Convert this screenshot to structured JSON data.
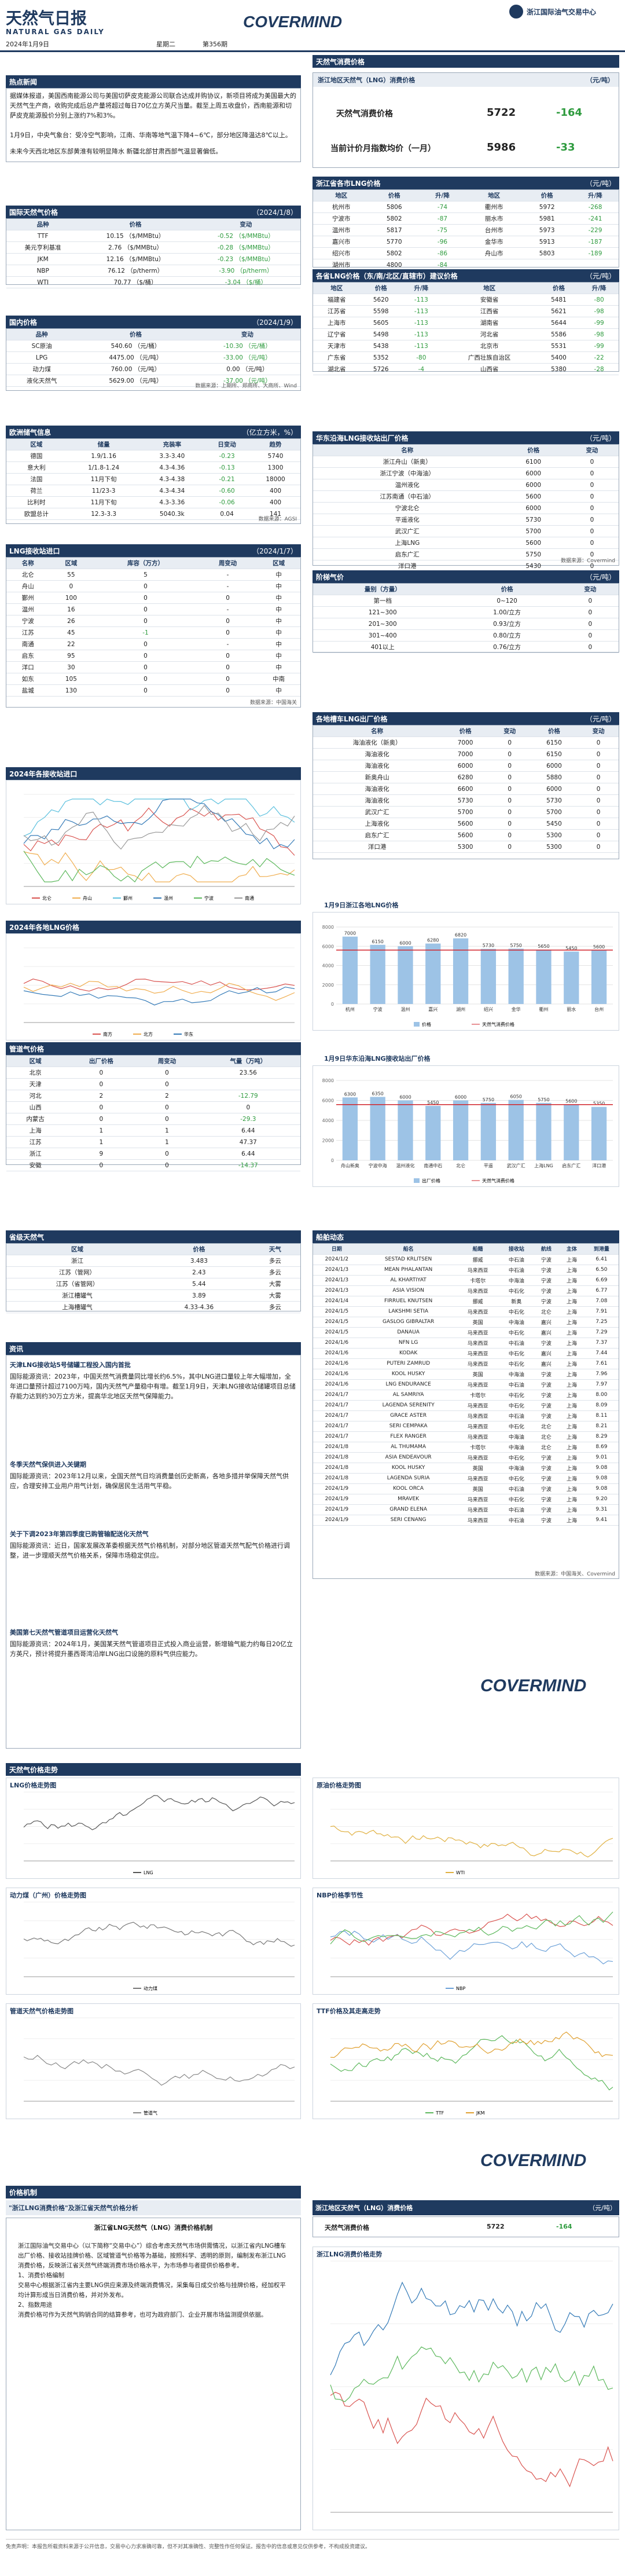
{
  "header": {
    "title": "天然气日报",
    "subtitle": "NATURAL GAS DAILY",
    "date": "2024年1月9日",
    "weekday": "星期二",
    "issue": "第356期",
    "brand": "COVERMIND",
    "org": "浙江国际油气交易中心"
  },
  "hot": {
    "title": "热点新闻",
    "p1": "据媒体报道，美国西南能源公司与美国切萨皮克能源公司联合达成并购协议，新项目将成为美国最大的天然气生产商，收购完成后总产量将超过每日70亿立方英尺当量。截至上周五收盘价，西南能源和切萨皮克能源股价分别上涨约7%和3%。",
    "p2": "1月9日，中央气象台：受冷空气影响，江南、华南等地气温下降4~6℃，部分地区降温达8℃以上。",
    "p3": "未来今天西北地区东部黄淮有较明显降水 新疆北部甘肃西部气温显著偏低。"
  },
  "intl": {
    "title": "国际天然气价格",
    "date": "（2024/1/8）",
    "cols": [
      "品种",
      "价格",
      "变动"
    ],
    "rows": [
      [
        "TTF",
        "10.15 （$/MMBtu）",
        "-0.52 （$/MMBtu）"
      ],
      [
        "美元亨利基准",
        "2.76 （$/MMBtu）",
        "-0.28 （$/MMBtu）"
      ],
      [
        "JKM",
        "12.16 （$/MMBtu）",
        "-0.23 （$/MMBtu）"
      ],
      [
        "NBP",
        "76.12 （p/therm）",
        "-3.90 （p/therm）"
      ],
      [
        "WTI",
        "70.77 （$/桶）",
        "-3.04 （$/桶）"
      ]
    ]
  },
  "dom": {
    "title": "国内价格",
    "date": "（2024/1/9）",
    "cols": [
      "品种",
      "价格",
      "变动"
    ],
    "rows": [
      [
        "SC原油",
        "540.60 （元/桶）",
        "-10.30 （元/桶）"
      ],
      [
        "LPG",
        "4475.00 （元/吨）",
        "-33.00 （元/吨）"
      ],
      [
        "动力煤",
        "760.00 （元/吨）",
        "0.00 （元/吨）"
      ],
      [
        "液化天然气",
        "5629.00 （元/吨）",
        "-37.00 （元/吨）"
      ]
    ],
    "note": "数据来源：上期所、郑商所、大商所、Wind"
  },
  "storage": {
    "title": "欧洲储气信息",
    "unit": "（亿立方米，%）",
    "cols": [
      "区域",
      "储量",
      "充装率",
      "日变动",
      "趋势"
    ],
    "rows": [
      [
        "德国",
        "1.9/1.16",
        "3.3-3.40",
        "-0.23",
        "5740"
      ],
      [
        "意大利",
        "1/1.8-1.24",
        "4.3-4.36",
        "-0.13",
        "1300"
      ],
      [
        "法国",
        "11月下旬",
        "4.3-4.38",
        "-0.21",
        "18000"
      ],
      [
        "荷兰",
        "11/23-3",
        "4.3-4.34",
        "-0.60",
        "400"
      ],
      [
        "比利时",
        "11月下旬",
        "4.3-3.36",
        "-0.06",
        "400"
      ],
      [
        "欧盟总计",
        "12.3-3.3",
        "5040.3k",
        "0.04",
        "141"
      ]
    ],
    "note": "数据来源：AGSI"
  },
  "lng": {
    "title": "LNG接收站进口",
    "date": "（2024/1/7）",
    "cols": [
      "名称",
      "区域",
      "库容（万方）",
      "周变动",
      "区域"
    ],
    "rows": [
      [
        "北仑",
        "55",
        "5",
        "-",
        "中"
      ],
      [
        "舟山",
        "0",
        "0",
        "-",
        "中"
      ],
      [
        "鄞州",
        "100",
        "0",
        "0",
        "中"
      ],
      [
        "温州",
        "16",
        "0",
        "-",
        "中"
      ],
      [
        "宁波",
        "26",
        "0",
        "0",
        "中"
      ],
      [
        "江苏",
        "45",
        "-1",
        "0",
        "中"
      ],
      [
        "南通",
        "22",
        "0",
        "-",
        "中"
      ],
      [
        "启东",
        "95",
        "0",
        "0",
        "中"
      ],
      [
        "洋口",
        "30",
        "0",
        "0",
        "中"
      ],
      [
        "如东",
        "105",
        "0",
        "0",
        "中南"
      ],
      [
        "盐城",
        "130",
        "0",
        "0",
        "中"
      ]
    ],
    "note": "数据来源：中国海关"
  },
  "lngChart": {
    "title": "2024年各接收站进口",
    "series": [
      {
        "name": "北仑",
        "color": "#d9534f"
      },
      {
        "name": "舟山",
        "color": "#f0ad4e"
      },
      {
        "name": "鄞州",
        "color": "#5bc0de"
      },
      {
        "name": "温州",
        "color": "#337ab7"
      },
      {
        "name": "宁波",
        "color": "#5cb85c"
      },
      {
        "name": "南通",
        "color": "#999999"
      }
    ]
  },
  "tradeChart": {
    "title": "2024年各地LNG价格",
    "series": [
      {
        "name": "南方",
        "color": "#d9534f"
      },
      {
        "name": "北方",
        "color": "#f0ad4e"
      },
      {
        "name": "华东",
        "color": "#337ab7"
      }
    ]
  },
  "pipe": {
    "title": "管道气价格",
    "cols": [
      "区域",
      "出厂价格",
      "周变动",
      "气量（万吨）"
    ],
    "rows": [
      [
        "北京",
        "0",
        "0",
        "23.56"
      ],
      [
        "天津",
        "0",
        "0",
        ""
      ],
      [
        "河北",
        "2",
        "2",
        "-12.79"
      ],
      [
        "山西",
        "0",
        "0",
        "0"
      ],
      [
        "内蒙古",
        "0",
        "0",
        "-29.3"
      ],
      [
        "上海",
        "1",
        "1",
        "6.44"
      ],
      [
        "江苏",
        "1",
        "1",
        "47.37"
      ],
      [
        "浙江",
        "9",
        "0",
        "6.44"
      ],
      [
        "安徽",
        "0",
        "0",
        "-14.37"
      ]
    ]
  },
  "city": {
    "title": "省级天然气",
    "cols": [
      "区域",
      "价格",
      "天气"
    ],
    "rows": [
      [
        "浙江",
        "3.483",
        "多云"
      ],
      [
        "江苏（管网）",
        "2.43",
        "多云"
      ],
      [
        "江苏（省管网）",
        "5.44",
        "大雾"
      ],
      [
        "浙江槽罐气",
        "3.89",
        "大雾"
      ],
      [
        "上海槽罐气",
        "4.33-4.36",
        "多云"
      ]
    ]
  },
  "news2": {
    "title": "资讯",
    "h1": "天津LNG接收站5号储罐工程投入国内首批",
    "p1": "国际能源资讯：2023年，中国天然气消费量同比增长约6.5%，其中LNG进口量较上年大幅增加，全年进口量预计超过7100万吨，国内天然气产量稳中有增。截至1月9日，天津LNG接收站储罐项目总储存能力达到约30万立方米，提高华北地区天然气保障能力。",
    "h2": "冬季天然气保供进入关键期",
    "p2": "国际能源资讯：2023年12月以来，全国天然气日均消费量创历史新高，各地多措并举保障天然气供应，合理安排工业用户用气计划，确保居民生活用气平稳。",
    "h3": "关于下调2023年第四季度已购管输配送化天然气",
    "p3": "国际能源资讯：近日，国家发展改革委根据天然气价格机制，对部分地区管道天然气配气价格进行调整，进一步理顺天然气价格关系，保障市场稳定供应。",
    "h4": "美国第七天然气管道项目运营化天然气",
    "p4": "国际能源资讯：2024年1月，美国某天然气管道项目正式投入商业运营，新增输气能力约每日20亿立方英尺，预计将提升墨西哥湾沿岸LNG出口设施的原料气供应能力。"
  },
  "consumer": {
    "title": "天然气消费价格",
    "sub": "浙江地区天然气（LNG）消费价格",
    "unit": "（元/吨）",
    "r1label": "天然气消费价格",
    "r1val": "5722",
    "r1chg": "-164",
    "r2label": "当前计价月指数均价（一月）",
    "r2val": "5986",
    "r2chg": "-33"
  },
  "zj": {
    "title": "浙江省各市LNG价格",
    "unit": "（元/吨）",
    "cols": [
      "地区",
      "价格",
      "升/降",
      "地区",
      "价格",
      "升/降"
    ],
    "rows": [
      [
        "杭州市",
        "5806",
        "-74",
        "衢州市",
        "5972",
        "-268"
      ],
      [
        "宁波市",
        "5802",
        "-87",
        "丽水市",
        "5981",
        "-241"
      ],
      [
        "温州市",
        "5817",
        "-75",
        "台州市",
        "5973",
        "-229"
      ],
      [
        "嘉兴市",
        "5770",
        "-96",
        "金华市",
        "5913",
        "-187"
      ],
      [
        "绍兴市",
        "5802",
        "-86",
        "舟山市",
        "5803",
        "-189"
      ],
      [
        "湖州市",
        "4800",
        "-84",
        "",
        "",
        ""
      ]
    ]
  },
  "regional": {
    "title": "各省LNG价格（东/南/北区/直辖市）建议价格",
    "unit": "（元/吨）",
    "cols": [
      "地区",
      "价格",
      "升/降",
      "地区",
      "价格",
      "升/降"
    ],
    "rows": [
      [
        "福建省",
        "5620",
        "-113",
        "安徽省",
        "5481",
        "-80"
      ],
      [
        "江苏省",
        "5598",
        "-113",
        "江西省",
        "5621",
        "-98"
      ],
      [
        "上海市",
        "5605",
        "-113",
        "湖南省",
        "5644",
        "-99"
      ],
      [
        "辽宁省",
        "5498",
        "-113",
        "河北省",
        "5586",
        "-98"
      ],
      [
        "天津市",
        "5438",
        "-113",
        "北京市",
        "5531",
        "-99"
      ],
      [
        "广东省",
        "5352",
        "-80",
        "广西壮族自治区",
        "5400",
        "-22"
      ],
      [
        "湖北省",
        "5726",
        "-4",
        "山西省",
        "5380",
        "-28"
      ]
    ]
  },
  "plant": {
    "title": "华东沿海LNG接收站出厂价格",
    "unit": "（元/吨）",
    "cols": [
      "名称",
      "价格",
      "变动"
    ],
    "rows": [
      [
        "浙江舟山（新奥）",
        "6100",
        "0"
      ],
      [
        "浙江宁波（中海油）",
        "6000",
        "0"
      ],
      [
        "温州液化",
        "6000",
        "0"
      ],
      [
        "江苏南通（中石油）",
        "5600",
        "0"
      ],
      [
        "宁波北仑",
        "6000",
        "0"
      ],
      [
        "平遥液化",
        "5730",
        "0"
      ],
      [
        "武汉广汇",
        "5700",
        "0"
      ],
      [
        "上海LNG",
        "5600",
        "0"
      ],
      [
        "启东广汇",
        "5750",
        "0"
      ],
      [
        "洋口港",
        "5430",
        "0"
      ]
    ],
    "note": "数据来源：Covermind"
  },
  "tierprice": {
    "title": "阶梯气价",
    "unit": "（元/吨）",
    "cols": [
      "量别（方量）",
      "价格",
      "变动"
    ],
    "rows": [
      [
        "第一档",
        "0~120",
        "0"
      ],
      [
        "121~300",
        "1.00/立方",
        "0"
      ],
      [
        "201~300",
        "0.93/立方",
        "0"
      ],
      [
        "301~400",
        "0.80/立方",
        "0"
      ],
      [
        "401以上",
        "0.76/立方",
        "0"
      ]
    ]
  },
  "tank": {
    "title": "各地槽车LNG出厂价格",
    "unit": "（元/吨）",
    "cols": [
      "名称",
      "价格",
      "变动",
      "价格",
      "变动"
    ],
    "rows": [
      [
        "海油液化（新奥）",
        "7000",
        "0",
        "6150",
        "0"
      ],
      [
        "海油液化",
        "7000",
        "0",
        "6150",
        "0"
      ],
      [
        "海油液化",
        "6000",
        "0",
        "6000",
        "0"
      ],
      [
        "新奥舟山",
        "6280",
        "0",
        "5880",
        "0"
      ],
      [
        "海油液化",
        "6600",
        "0",
        "6000",
        "0"
      ],
      [
        "海油液化",
        "5730",
        "0",
        "5730",
        "0"
      ],
      [
        "武汉广汇",
        "5700",
        "0",
        "5700",
        "0"
      ],
      [
        "上海液化",
        "5600",
        "0",
        "5450",
        "0"
      ],
      [
        "启东广汇",
        "5600",
        "0",
        "5300",
        "0"
      ],
      [
        "洋口港",
        "5300",
        "0",
        "5300",
        "0"
      ]
    ]
  },
  "bar1": {
    "title": "1月9日浙江各地LNG价格",
    "values": [
      7000,
      6150,
      6000,
      6280,
      6820,
      5730,
      5750,
      5650,
      5450,
      5600
    ],
    "labels": [
      "杭州",
      "宁波",
      "温州",
      "嘉兴",
      "湖州",
      "绍兴",
      "金华",
      "衢州",
      "丽水",
      "台州"
    ],
    "avg": 5600,
    "legend1": "价格",
    "legend2": "天然气消费价格"
  },
  "bar2": {
    "title": "1月9日华东沿海LNG接收站出厂价格",
    "values": [
      6300,
      6350,
      6000,
      5450,
      6000,
      5750,
      6050,
      5750,
      5600,
      5350
    ],
    "labels": [
      "舟山新奥",
      "宁波中海",
      "温州液化",
      "南通中石",
      "北仑",
      "平遥",
      "武汉广汇",
      "上海LNG",
      "启东广汇",
      "洋口港"
    ],
    "avg": 5580,
    "legend1": "出厂价格",
    "legend2": "天然气消费价格"
  },
  "ships": {
    "title": "船舶动态",
    "cols": [
      "日期",
      "船名",
      "船籍",
      "接收站",
      "航线",
      "主体",
      "到港量"
    ],
    "rows": [
      [
        "2024/1/2",
        "SESTAD KRLITSEN",
        "挪威",
        "中石油",
        "宁波",
        "上海",
        "6.41"
      ],
      [
        "2024/1/3",
        "MEAN PHALANTAN",
        "马来西亚",
        "中石油",
        "宁波",
        "上海",
        "6.50"
      ],
      [
        "2024/1/3",
        "AL KHARTIYAT",
        "卡塔尔",
        "中海油",
        "宁波",
        "上海",
        "6.69"
      ],
      [
        "2024/1/3",
        "ASIA VISION",
        "马来西亚",
        "中石化",
        "宁波",
        "上海",
        "6.77"
      ],
      [
        "2024/1/4",
        "FIRRUEL KNUTSEN",
        "挪威",
        "新奥",
        "宁波",
        "上海",
        "7.08"
      ],
      [
        "2024/1/5",
        "LAKSHMI SETIA",
        "马来西亚",
        "中石化",
        "北仑",
        "上海",
        "7.91"
      ],
      [
        "2024/1/5",
        "GASLOG GIBRALTAR",
        "英国",
        "中海油",
        "嘉兴",
        "上海",
        "7.25"
      ],
      [
        "2024/1/5",
        "DANAUA",
        "马来西亚",
        "中石化",
        "嘉兴",
        "上海",
        "7.29"
      ],
      [
        "2024/1/6",
        "NFN LG",
        "马来西亚",
        "中石油",
        "宁波",
        "上海",
        "7.37"
      ],
      [
        "2024/1/6",
        "KODAK",
        "马来西亚",
        "中石化",
        "嘉兴",
        "上海",
        "7.44"
      ],
      [
        "2024/1/6",
        "PUTERI ZAMRUD",
        "马来西亚",
        "中石化",
        "嘉兴",
        "上海",
        "7.61"
      ],
      [
        "2024/1/6",
        "KOOL HUSKY",
        "英国",
        "中海油",
        "宁波",
        "上海",
        "7.96"
      ],
      [
        "2024/1/6",
        "LNG ENDURANCE",
        "马来西亚",
        "中石油",
        "宁波",
        "上海",
        "7.97"
      ],
      [
        "2024/1/7",
        "AL SAMRIYA",
        "卡塔尔",
        "中石化",
        "宁波",
        "上海",
        "8.00"
      ],
      [
        "2024/1/7",
        "LAGENDA SERENITY",
        "马来西亚",
        "中石化",
        "宁波",
        "上海",
        "8.09"
      ],
      [
        "2024/1/7",
        "GRACE ASTER",
        "马来西亚",
        "中石油",
        "宁波",
        "上海",
        "8.11"
      ],
      [
        "2024/1/7",
        "SERI CEMPAKA",
        "马来西亚",
        "中石化",
        "北仑",
        "上海",
        "8.21"
      ],
      [
        "2024/1/7",
        "FLEX RANGER",
        "马来西亚",
        "中海油",
        "北仑",
        "上海",
        "8.29"
      ],
      [
        "2024/1/8",
        "AL THUMAMA",
        "卡塔尔",
        "中海油",
        "北仑",
        "上海",
        "8.69"
      ],
      [
        "2024/1/8",
        "ASIA ENDEAVOUR",
        "马来西亚",
        "中石化",
        "宁波",
        "上海",
        "9.01"
      ],
      [
        "2024/1/8",
        "KOOL HUSKY",
        "英国",
        "中海油",
        "宁波",
        "上海",
        "9.08"
      ],
      [
        "2024/1/8",
        "LAGENDA SURIA",
        "马来西亚",
        "中石化",
        "宁波",
        "上海",
        "9.08"
      ],
      [
        "2024/1/9",
        "KOOL ORCA",
        "英国",
        "中石油",
        "宁波",
        "上海",
        "9.08"
      ],
      [
        "2024/1/9",
        "MRAVEK",
        "马来西亚",
        "中石化",
        "宁波",
        "上海",
        "9.20"
      ],
      [
        "2024/1/9",
        "GRAND ELENA",
        "马来西亚",
        "中石油",
        "宁波",
        "上海",
        "9.31"
      ],
      [
        "2024/1/9",
        "SERI CENANG",
        "马来西亚",
        "中石油",
        "宁波",
        "上海",
        "9.41"
      ]
    ],
    "note": "数据来源：中国海关、Covermind"
  },
  "trend": {
    "title": "天然气价格走势",
    "c1": "LNG价格走势图",
    "c2": "原油价格走势图",
    "c3": "动力煤（广州）价格走势图",
    "c4": "NBP价格季节性",
    "c5": "管道天然气价格走势图",
    "c6": "TTF价格及其走高走势",
    "leg1": "LNG",
    "leg2": "WTI",
    "leg3": "动力煤",
    "leg4": "NBP",
    "leg5": "管道气",
    "leg6a": "TTF",
    "leg6b": "JKM"
  },
  "final": {
    "title": "价格机制",
    "sub": "\"浙江LNG消费价格\"及浙江省天然气价格分析",
    "caption": "浙江省LNG天然气（LNG）消费价格机制",
    "body": "浙江国际油气交易中心（以下简称“交易中心”）综合考虑天然气市场供需情况，以浙江省内LNG槽车出厂价格、接收站挂牌价格、区域管道气价格等为基础，按照科学、透明的原则，编制发布浙江LNG消费价格，反映浙江省天然气终端消费市场价格水平，为市场参与者提供价格参考。\n1、消费价格编制\n交易中心根据浙江省内主要LNG供应来源及终端消费情况，采集每日成交价格与挂牌价格，经加权平均计算形成当日消费价格，并对外发布。\n2、指数用途\n消费价格可作为天然气购销合同的结算参考，也可为政府部门、企业开展市场监测提供依据。",
    "sub2": "浙江地区天然气（LNG）消费价格",
    "unit2": "（元/吨）",
    "rlabel": "天然气消费价格",
    "rval": "5722",
    "rchg": "-164",
    "chart": "浙江LNG消费价格走势",
    "disclaimer": "免责声明：本报告所载资料来源于公开信息，交易中心力求准确可靠，但不对其准确性、完整性作任何保证。报告中的信息或意见仅供参考，不构成投资建议。"
  }
}
